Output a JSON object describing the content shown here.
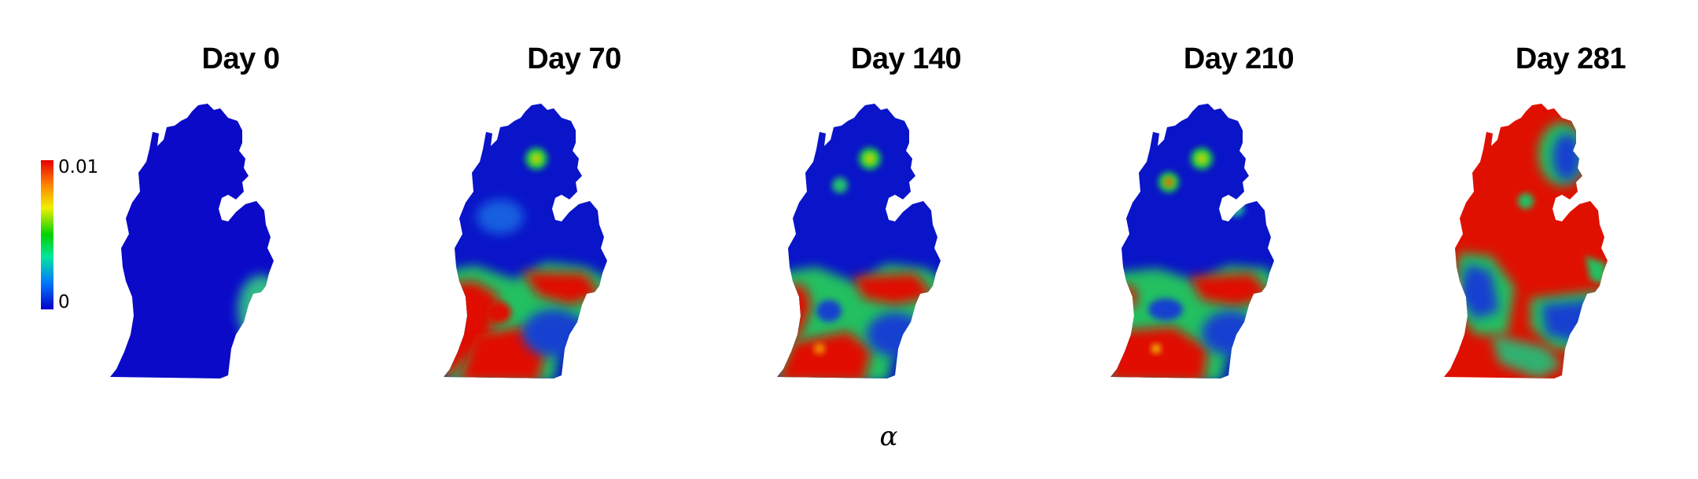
{
  "panels": [
    {
      "title": "Day 0"
    },
    {
      "title": "Day 70"
    },
    {
      "title": "Day 140"
    },
    {
      "title": "Day 210"
    },
    {
      "title": "Day 281"
    }
  ],
  "colorbar": {
    "max_label": "0.01",
    "min_label": "0",
    "colormap": [
      "#0000c8",
      "#0078ff",
      "#00e6a0",
      "#00d200",
      "#f0f000",
      "#ff8000",
      "#e60000"
    ]
  },
  "variable_label": "α"
}
